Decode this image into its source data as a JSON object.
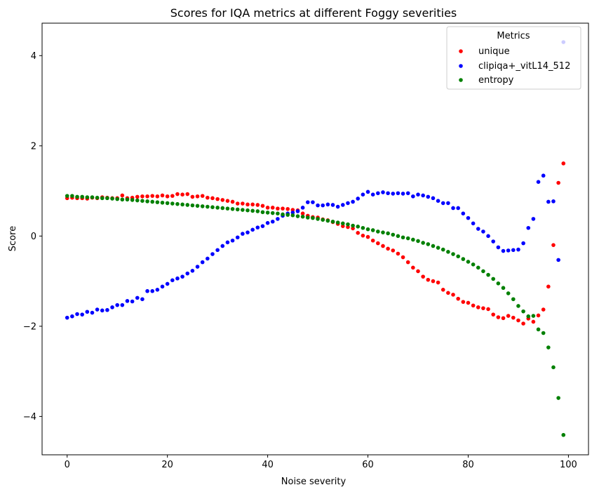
{
  "chart_data": {
    "type": "scatter",
    "title": "Scores for IQA metrics at different Foggy severities",
    "xlabel": "Noise severity",
    "ylabel": "Score",
    "xlim": [
      -5,
      104
    ],
    "ylim": [
      -4.85,
      4.72
    ],
    "xticks": [
      0,
      20,
      40,
      60,
      80,
      100
    ],
    "yticks": [
      -4,
      -2,
      0,
      2,
      4
    ],
    "grid": false,
    "legend": {
      "title": "Metrics",
      "placement": "top-right"
    },
    "series": [
      {
        "name": "unique",
        "color": "#ff0000",
        "y": [
          0.84,
          0.85,
          0.84,
          0.84,
          0.83,
          0.85,
          0.84,
          0.86,
          0.85,
          0.84,
          0.84,
          0.9,
          0.84,
          0.85,
          0.87,
          0.88,
          0.88,
          0.89,
          0.88,
          0.9,
          0.88,
          0.89,
          0.93,
          0.92,
          0.93,
          0.87,
          0.88,
          0.89,
          0.85,
          0.84,
          0.82,
          0.8,
          0.78,
          0.76,
          0.72,
          0.72,
          0.7,
          0.7,
          0.69,
          0.67,
          0.63,
          0.63,
          0.61,
          0.61,
          0.6,
          0.58,
          0.57,
          0.5,
          0.45,
          0.42,
          0.41,
          0.37,
          0.35,
          0.31,
          0.27,
          0.22,
          0.2,
          0.17,
          0.07,
          0.01,
          -0.02,
          -0.1,
          -0.16,
          -0.22,
          -0.28,
          -0.32,
          -0.39,
          -0.47,
          -0.58,
          -0.7,
          -0.78,
          -0.9,
          -0.97,
          -1.0,
          -1.03,
          -1.19,
          -1.26,
          -1.3,
          -1.39,
          -1.46,
          -1.48,
          -1.54,
          -1.58,
          -1.6,
          -1.62,
          -1.74,
          -1.8,
          -1.82,
          -1.77,
          -1.81,
          -1.87,
          -1.94,
          -1.83,
          -1.9,
          -1.76,
          -1.63,
          -1.12,
          -0.2,
          1.18,
          1.61
        ]
      },
      {
        "name": "clipiqa+_vitL14_512",
        "color": "#0000ff",
        "y": [
          -1.81,
          -1.78,
          -1.73,
          -1.74,
          -1.68,
          -1.7,
          -1.63,
          -1.65,
          -1.64,
          -1.58,
          -1.53,
          -1.53,
          -1.44,
          -1.45,
          -1.37,
          -1.4,
          -1.22,
          -1.22,
          -1.19,
          -1.12,
          -1.06,
          -0.98,
          -0.94,
          -0.9,
          -0.83,
          -0.77,
          -0.68,
          -0.58,
          -0.5,
          -0.4,
          -0.31,
          -0.22,
          -0.14,
          -0.1,
          -0.03,
          0.05,
          0.08,
          0.14,
          0.19,
          0.22,
          0.29,
          0.32,
          0.38,
          0.45,
          0.5,
          0.52,
          0.55,
          0.63,
          0.75,
          0.75,
          0.68,
          0.68,
          0.7,
          0.69,
          0.65,
          0.69,
          0.73,
          0.76,
          0.83,
          0.92,
          0.98,
          0.92,
          0.95,
          0.97,
          0.95,
          0.94,
          0.95,
          0.94,
          0.95,
          0.88,
          0.92,
          0.9,
          0.87,
          0.84,
          0.78,
          0.73,
          0.73,
          0.62,
          0.62,
          0.5,
          0.4,
          0.28,
          0.16,
          0.1,
          0.0,
          -0.12,
          -0.25,
          -0.33,
          -0.32,
          -0.31,
          -0.3,
          -0.16,
          0.18,
          0.38,
          1.2,
          1.34,
          0.76,
          0.77,
          -0.53,
          4.3
        ]
      },
      {
        "name": "entropy",
        "color": "#008000",
        "y": [
          0.89,
          0.89,
          0.87,
          0.87,
          0.86,
          0.86,
          0.85,
          0.84,
          0.84,
          0.83,
          0.82,
          0.81,
          0.81,
          0.8,
          0.79,
          0.78,
          0.77,
          0.76,
          0.75,
          0.74,
          0.73,
          0.72,
          0.71,
          0.7,
          0.69,
          0.68,
          0.67,
          0.66,
          0.65,
          0.64,
          0.63,
          0.62,
          0.61,
          0.6,
          0.59,
          0.58,
          0.57,
          0.56,
          0.55,
          0.53,
          0.52,
          0.51,
          0.5,
          0.48,
          0.47,
          0.46,
          0.44,
          0.43,
          0.41,
          0.4,
          0.38,
          0.36,
          0.34,
          0.32,
          0.3,
          0.28,
          0.26,
          0.23,
          0.21,
          0.18,
          0.15,
          0.13,
          0.1,
          0.08,
          0.06,
          0.03,
          0.0,
          -0.03,
          -0.05,
          -0.08,
          -0.11,
          -0.15,
          -0.18,
          -0.22,
          -0.26,
          -0.3,
          -0.35,
          -0.4,
          -0.45,
          -0.51,
          -0.57,
          -0.63,
          -0.7,
          -0.78,
          -0.86,
          -0.95,
          -1.05,
          -1.15,
          -1.27,
          -1.4,
          -1.55,
          -1.67,
          -1.78,
          -1.77,
          -2.07,
          -2.15,
          -2.47,
          -2.91,
          -3.59,
          -4.41
        ]
      }
    ]
  }
}
